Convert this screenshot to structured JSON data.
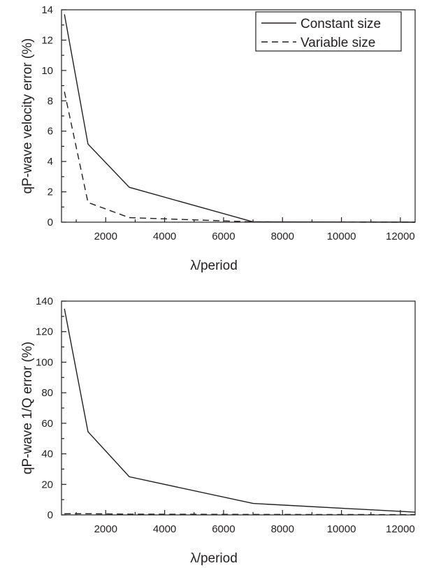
{
  "chart_data": [
    {
      "type": "line",
      "xlabel": "λ/period",
      "ylabel": "qP-wave velocity error (%)",
      "xlim": [
        500,
        12500
      ],
      "ylim": [
        0,
        14
      ],
      "x_ticks": [
        2000,
        4000,
        6000,
        8000,
        10000,
        12000
      ],
      "y_ticks": [
        0,
        2,
        4,
        6,
        8,
        10,
        12,
        14
      ],
      "grid": false,
      "legend_position": "top-right",
      "series": [
        {
          "name": "Constant size",
          "style": "solid",
          "x": [
            600,
            1400,
            2800,
            7000,
            12500
          ],
          "y": [
            13.7,
            5.15,
            2.3,
            0.02,
            0.0
          ]
        },
        {
          "name": "Variable size",
          "style": "dashed",
          "x": [
            600,
            1400,
            2800,
            7000,
            12500
          ],
          "y": [
            8.6,
            1.3,
            0.3,
            0.02,
            0.0
          ]
        }
      ]
    },
    {
      "type": "line",
      "xlabel": "λ/period",
      "ylabel": "qP-wave 1/Q error (%)",
      "xlim": [
        500,
        12500
      ],
      "ylim": [
        0,
        140
      ],
      "x_ticks": [
        2000,
        4000,
        6000,
        8000,
        10000,
        12000
      ],
      "y_ticks": [
        0,
        20,
        40,
        60,
        80,
        100,
        120,
        140
      ],
      "grid": false,
      "series": [
        {
          "style": "solid",
          "x": [
            600,
            1400,
            2800,
            7000,
            12500
          ],
          "y": [
            135,
            54.5,
            25,
            7.5,
            1.8
          ]
        },
        {
          "style": "dashed",
          "x": [
            600,
            1400,
            2800,
            7000,
            12500
          ],
          "y": [
            0.8,
            0.8,
            0.5,
            0.3,
            0.2
          ]
        }
      ]
    }
  ],
  "colors": {
    "ink": "#231f20",
    "background": "#ffffff"
  }
}
